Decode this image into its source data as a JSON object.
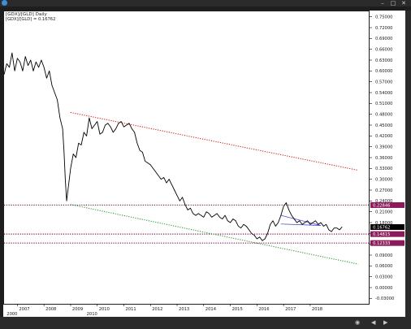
{
  "window": {
    "title": "",
    "minimize_glyph": "–",
    "maximize_glyph": "□",
    "close_glyph": "✕",
    "status_icons": [
      "◉",
      "◀",
      "▶"
    ]
  },
  "chart_data": [
    {
      "type": "line",
      "title": "[GDX]/[GLD] Daily",
      "readout": "[GDX]/[GLD] = 0.16762",
      "xlabel": "",
      "ylabel": "",
      "x_ticks": [
        "2007",
        "2008",
        "2009",
        "2010",
        "2011",
        "2012",
        "2013",
        "2014",
        "2015",
        "2016",
        "2017",
        "2018"
      ],
      "x_sub_ticks": [
        "2000",
        "2010"
      ],
      "y_ticks": [
        "0.75000",
        "0.72000",
        "0.69000",
        "0.66000",
        "0.63000",
        "0.60000",
        "0.57000",
        "0.54000",
        "0.51000",
        "0.48000",
        "0.45000",
        "0.42000",
        "0.39000",
        "0.36000",
        "0.33000",
        "0.30000",
        "0.27000",
        "0.24000",
        "0.21000",
        "0.18000",
        "0.15000",
        "0.12000",
        "0.09000",
        "0.06000",
        "0.03000",
        "0.00000",
        "-0.03000"
      ],
      "ylim": [
        -0.045,
        0.765
      ],
      "xlim": [
        2006.5,
        2020.2
      ],
      "price_labels": [
        {
          "text": "0.22846",
          "value": 0.22846,
          "color": "#8b1a5a"
        },
        {
          "text": "0.16762",
          "value": 0.16762,
          "color": "#000000"
        },
        {
          "text": "0.14815",
          "value": 0.14815,
          "color": "#8b1a5a"
        },
        {
          "text": "0.12333",
          "value": 0.12333,
          "color": "#8b1a5a"
        }
      ],
      "horizontal_lines": [
        {
          "value": 0.22846,
          "color": "#7a1250"
        },
        {
          "value": 0.14815,
          "color": "#7a1250"
        },
        {
          "value": 0.12333,
          "color": "#7a1250"
        }
      ],
      "trend_lines": [
        {
          "name": "",
          "color": "#d62020",
          "x": [
            2009.0,
            2019.8
          ],
          "y": [
            0.485,
            0.325
          ]
        },
        {
          "name": "",
          "color": "#2e9e2e",
          "x": [
            2009.0,
            2019.8
          ],
          "y": [
            0.23,
            0.065
          ]
        },
        {
          "name": "",
          "color": "#4a4ad0",
          "x": [
            2016.9,
            2018.4
          ],
          "y": [
            0.2,
            0.172
          ]
        },
        {
          "name": "",
          "color": "#4a4ad0",
          "x": [
            2016.9,
            2018.4
          ],
          "y": [
            0.176,
            0.172
          ]
        }
      ],
      "series": [
        {
          "name": "[GDX]/[GLD]",
          "color": "#000000",
          "x": [
            2006.5,
            2006.6,
            2006.7,
            2006.8,
            2006.9,
            2007.0,
            2007.1,
            2007.2,
            2007.3,
            2007.4,
            2007.5,
            2007.6,
            2007.7,
            2007.8,
            2007.9,
            2008.0,
            2008.1,
            2008.2,
            2008.3,
            2008.4,
            2008.5,
            2008.6,
            2008.7,
            2008.75,
            2008.8,
            2008.85,
            2008.9,
            2009.0,
            2009.1,
            2009.2,
            2009.3,
            2009.4,
            2009.5,
            2009.6,
            2009.7,
            2009.8,
            2009.9,
            2010.0,
            2010.1,
            2010.2,
            2010.3,
            2010.4,
            2010.5,
            2010.6,
            2010.7,
            2010.8,
            2010.9,
            2011.0,
            2011.1,
            2011.2,
            2011.3,
            2011.4,
            2011.5,
            2011.6,
            2011.7,
            2011.8,
            2011.9,
            2012.0,
            2012.1,
            2012.2,
            2012.3,
            2012.4,
            2012.5,
            2012.6,
            2012.7,
            2012.8,
            2012.9,
            2013.0,
            2013.1,
            2013.2,
            2013.3,
            2013.4,
            2013.5,
            2013.6,
            2013.7,
            2013.8,
            2013.9,
            2014.0,
            2014.1,
            2014.2,
            2014.3,
            2014.4,
            2014.5,
            2014.6,
            2014.7,
            2014.8,
            2014.9,
            2015.0,
            2015.1,
            2015.2,
            2015.3,
            2015.4,
            2015.5,
            2015.6,
            2015.7,
            2015.8,
            2015.9,
            2016.0,
            2016.1,
            2016.2,
            2016.3,
            2016.4,
            2016.5,
            2016.6,
            2016.7,
            2016.8,
            2016.9,
            2017.0,
            2017.1,
            2017.2,
            2017.3,
            2017.4,
            2017.5,
            2017.6,
            2017.7,
            2017.8,
            2017.9,
            2018.0,
            2018.1,
            2018.2,
            2018.3,
            2018.4,
            2018.5,
            2018.6,
            2018.7,
            2018.8,
            2018.9,
            2019.0,
            2019.1,
            2019.2
          ],
          "values": [
            0.59,
            0.62,
            0.61,
            0.65,
            0.6,
            0.635,
            0.625,
            0.6,
            0.64,
            0.615,
            0.63,
            0.6,
            0.625,
            0.61,
            0.63,
            0.61,
            0.58,
            0.6,
            0.56,
            0.54,
            0.52,
            0.47,
            0.44,
            0.38,
            0.3,
            0.24,
            0.27,
            0.33,
            0.37,
            0.36,
            0.4,
            0.395,
            0.43,
            0.42,
            0.47,
            0.44,
            0.45,
            0.46,
            0.425,
            0.43,
            0.45,
            0.455,
            0.445,
            0.43,
            0.44,
            0.455,
            0.46,
            0.445,
            0.45,
            0.455,
            0.44,
            0.43,
            0.4,
            0.38,
            0.375,
            0.35,
            0.345,
            0.34,
            0.33,
            0.32,
            0.31,
            0.3,
            0.305,
            0.29,
            0.3,
            0.285,
            0.27,
            0.255,
            0.24,
            0.25,
            0.23,
            0.215,
            0.22,
            0.205,
            0.2,
            0.205,
            0.2,
            0.195,
            0.21,
            0.205,
            0.195,
            0.2,
            0.205,
            0.195,
            0.19,
            0.2,
            0.185,
            0.18,
            0.19,
            0.185,
            0.17,
            0.165,
            0.175,
            0.17,
            0.16,
            0.15,
            0.145,
            0.135,
            0.14,
            0.13,
            0.135,
            0.15,
            0.175,
            0.185,
            0.17,
            0.18,
            0.2,
            0.225,
            0.235,
            0.215,
            0.2,
            0.19,
            0.18,
            0.185,
            0.175,
            0.18,
            0.185,
            0.175,
            0.18,
            0.185,
            0.175,
            0.18,
            0.17,
            0.175,
            0.16,
            0.155,
            0.165,
            0.165,
            0.16,
            0.168
          ]
        }
      ]
    }
  ]
}
